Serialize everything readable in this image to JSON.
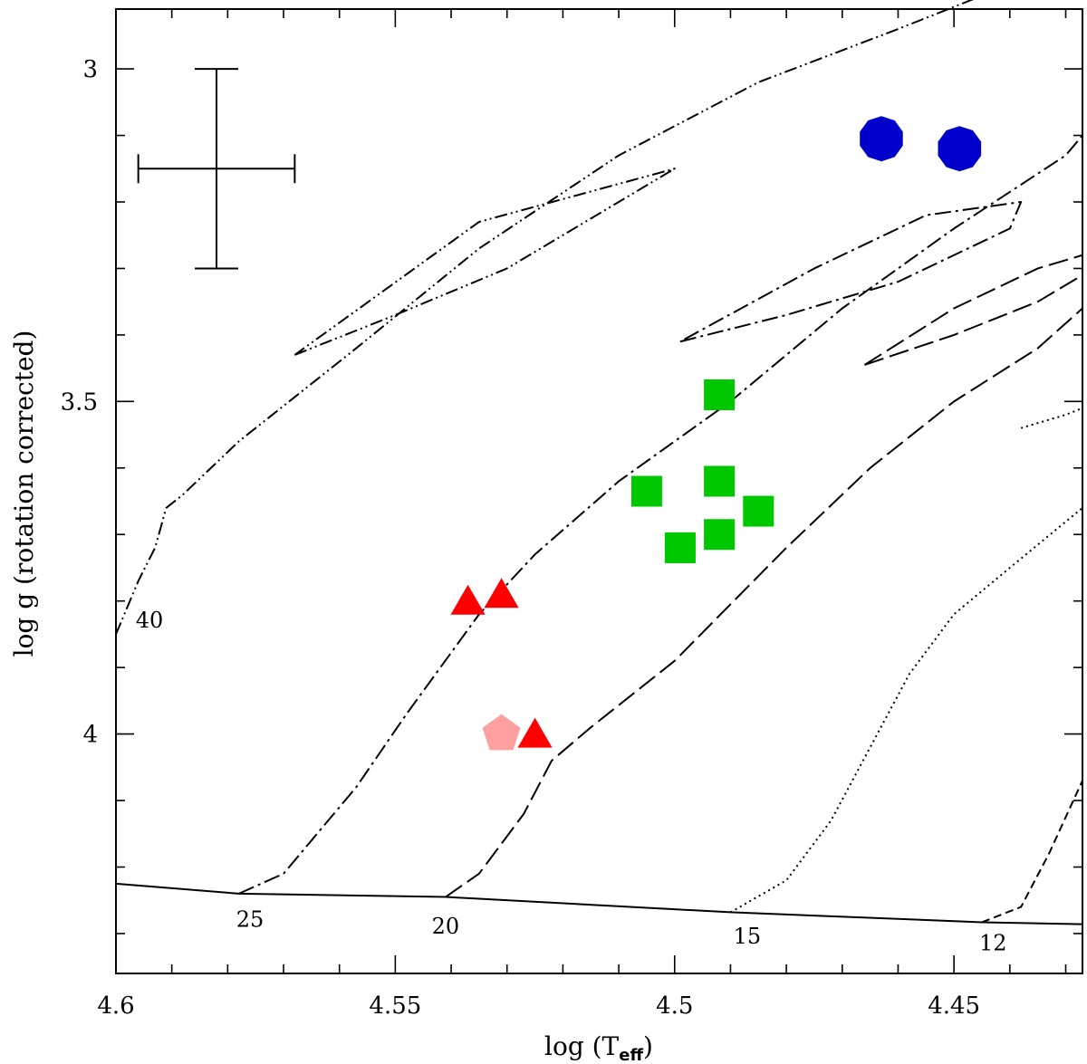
{
  "chart_data": {
    "type": "scatter",
    "title": "",
    "xlabel": "log (T",
    "xlabel_sub": "eff",
    "xlabel_close": ")",
    "ylabel": "log g (rotation corrected)",
    "xlim": [
      4.6,
      4.427
    ],
    "ylim": [
      4.36,
      2.91
    ],
    "x_ticks": [
      4.6,
      4.55,
      4.5,
      4.45
    ],
    "x_tick_labels": [
      "4.6",
      "4.55",
      "4.5",
      "4.45"
    ],
    "x_minor_step": 0.01,
    "y_ticks": [
      3.0,
      3.5,
      4.0
    ],
    "y_tick_labels": [
      "3",
      "3.5",
      "4"
    ],
    "y_minor_step": 0.1,
    "grid": false,
    "zams": {
      "x": [
        4.6,
        4.578,
        4.541,
        4.49,
        4.445,
        4.427
      ],
      "y": [
        4.225,
        4.24,
        4.245,
        4.268,
        4.283,
        4.286
      ]
    },
    "tracks": [
      {
        "mass_label": "40",
        "label_at": [
          4.594,
          3.84
        ],
        "style": "dashdotdot",
        "x": [
          4.6,
          4.596,
          4.593,
          4.591,
          4.588,
          4.578,
          4.557,
          4.535,
          4.51,
          4.485,
          4.46,
          4.43
        ],
        "y": [
          3.85,
          3.77,
          3.72,
          3.66,
          3.64,
          3.56,
          3.42,
          3.27,
          3.13,
          3.02,
          2.94,
          2.84
        ]
      },
      {
        "mass_label": "",
        "style": "dashdotdot",
        "x": [
          4.568,
          4.55,
          4.53,
          4.51,
          4.5,
          4.535,
          4.568
        ],
        "y": [
          3.43,
          3.37,
          3.3,
          3.2,
          3.15,
          3.23,
          3.43
        ]
      },
      {
        "mass_label": "25",
        "label_at": [
          4.576,
          4.29
        ],
        "style": "dashdot",
        "x": [
          4.578,
          4.57,
          4.565,
          4.557,
          4.548,
          4.535,
          4.525,
          4.51,
          4.49,
          4.47,
          4.45,
          4.43,
          4.427
        ],
        "y": [
          4.24,
          4.21,
          4.16,
          4.08,
          3.97,
          3.82,
          3.73,
          3.62,
          3.5,
          3.36,
          3.24,
          3.13,
          3.1
        ]
      },
      {
        "mass_label": "",
        "style": "dashdot",
        "x": [
          4.499,
          4.48,
          4.46,
          4.44,
          4.438,
          4.455,
          4.475,
          4.499
        ],
        "y": [
          3.41,
          3.37,
          3.32,
          3.24,
          3.2,
          3.22,
          3.3,
          3.41
        ]
      },
      {
        "mass_label": "20",
        "label_at": [
          4.541,
          4.3
        ],
        "style": "longdash",
        "x": [
          4.541,
          4.535,
          4.527,
          4.522,
          4.515,
          4.5,
          4.48,
          4.465,
          4.45,
          4.435,
          4.427
        ],
        "y": [
          4.245,
          4.21,
          4.12,
          4.04,
          3.99,
          3.89,
          3.72,
          3.6,
          3.5,
          3.42,
          3.36
        ]
      },
      {
        "mass_label": "",
        "style": "longdash",
        "x": [
          4.466,
          4.45,
          4.435,
          4.427
        ],
        "y": [
          3.445,
          3.4,
          3.35,
          3.31
        ]
      },
      {
        "mass_label": "",
        "style": "longdash",
        "x": [
          4.466,
          4.45,
          4.435,
          4.427
        ],
        "y": [
          3.445,
          3.36,
          3.3,
          3.28
        ]
      },
      {
        "mass_label": "15",
        "label_at": [
          4.487,
          4.315
        ],
        "style": "dotted",
        "x": [
          4.49,
          4.48,
          4.472,
          4.465,
          4.458,
          4.45,
          4.44,
          4.427
        ],
        "y": [
          4.268,
          4.22,
          4.13,
          4.02,
          3.91,
          3.82,
          3.75,
          3.66
        ]
      },
      {
        "mass_label": "",
        "style": "dotted",
        "x": [
          4.438,
          4.43,
          4.427
        ],
        "y": [
          3.54,
          3.52,
          3.51
        ]
      },
      {
        "mass_label": "12",
        "label_at": [
          4.443,
          4.325
        ],
        "style": "shortdash",
        "x": [
          4.445,
          4.438,
          4.433,
          4.427
        ],
        "y": [
          4.283,
          4.26,
          4.18,
          4.07
        ]
      }
    ],
    "series": [
      {
        "marker": "hexagon",
        "color": "#0000cc",
        "points": [
          [
            4.463,
            3.105
          ],
          [
            4.449,
            3.12
          ]
        ]
      },
      {
        "marker": "square",
        "color": "#00c800",
        "points": [
          [
            4.492,
            3.49
          ],
          [
            4.505,
            3.635
          ],
          [
            4.492,
            3.62
          ],
          [
            4.485,
            3.665
          ],
          [
            4.492,
            3.7
          ],
          [
            4.499,
            3.72
          ]
        ]
      },
      {
        "marker": "triangle",
        "color": "#ff0000",
        "points": [
          [
            4.537,
            3.8
          ],
          [
            4.531,
            3.79
          ],
          [
            4.525,
            4.0
          ]
        ]
      },
      {
        "marker": "pentagon",
        "color": "#ffa0a0",
        "points": [
          [
            4.531,
            4.0
          ]
        ]
      }
    ],
    "error_bar": {
      "x": 4.582,
      "y": 3.15,
      "xerr": 0.014,
      "yerr": 0.15
    }
  }
}
